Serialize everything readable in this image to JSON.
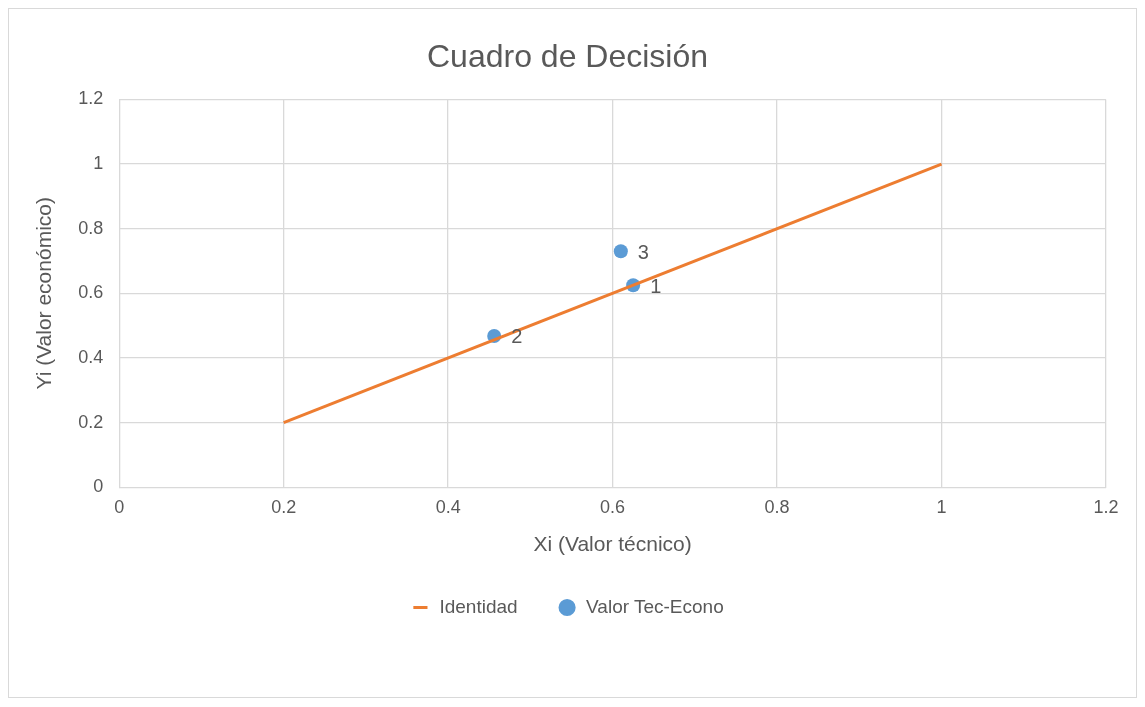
{
  "chart_data": {
    "type": "scatter",
    "title": "Cuadro de Decisión",
    "xlabel": "Xi (Valor técnico)",
    "ylabel": "Yi (Valor económico)",
    "xlim": [
      0,
      1.2
    ],
    "xticks": [
      0,
      0.2,
      0.4,
      0.6,
      0.8,
      1,
      1.2
    ],
    "ylim": [
      0,
      1.2
    ],
    "yticks": [
      0,
      0.2,
      0.4,
      0.6,
      0.8,
      1,
      1.2
    ],
    "grid": true,
    "legend": "bottom",
    "series": [
      {
        "name": "Identidad",
        "type": "line",
        "color": "#ed7d31",
        "x": [
          0.2,
          1
        ],
        "values": [
          0.2,
          1
        ],
        "marker": "none"
      },
      {
        "name": "Valor Tec-Econo",
        "color": "#5b9bd5",
        "x": [
          0.625,
          0.456,
          0.61
        ],
        "values": [
          0.625,
          0.468,
          0.73
        ],
        "marker": "circle"
      }
    ],
    "annotations": [
      {
        "text": "1",
        "x": 0.625,
        "y": 0.625
      },
      {
        "text": "2",
        "x": 0.456,
        "y": 0.468
      },
      {
        "text": "3",
        "x": 0.61,
        "y": 0.73
      }
    ]
  }
}
